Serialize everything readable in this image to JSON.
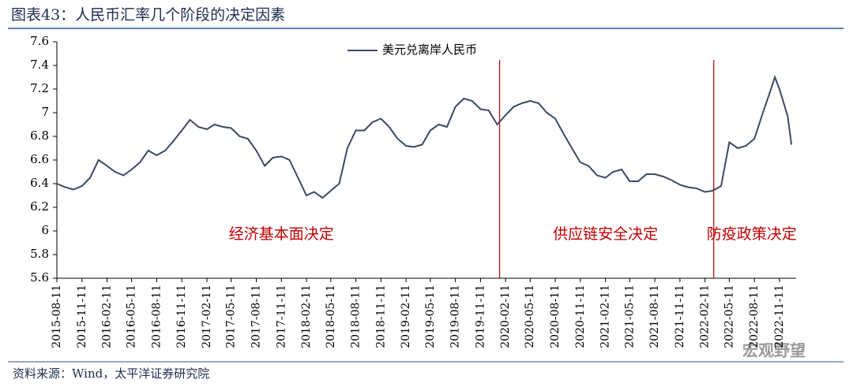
{
  "chart_data": {
    "type": "line",
    "title": "图表43：人民币汇率几个阶段的决定因素",
    "source": "资料来源：Wind，太平洋证券研究院",
    "watermark": "宏观野望",
    "x": [
      "2015-08-11",
      "2015-09-11",
      "2015-10-11",
      "2015-11-11",
      "2015-12-11",
      "2016-01-11",
      "2016-02-11",
      "2016-03-11",
      "2016-04-11",
      "2016-05-11",
      "2016-06-11",
      "2016-07-11",
      "2016-08-11",
      "2016-09-11",
      "2016-10-11",
      "2016-11-11",
      "2016-12-11",
      "2017-01-11",
      "2017-02-11",
      "2017-03-11",
      "2017-04-11",
      "2017-05-11",
      "2017-06-11",
      "2017-07-11",
      "2017-08-11",
      "2017-09-11",
      "2017-10-11",
      "2017-11-11",
      "2017-12-11",
      "2018-01-11",
      "2018-02-11",
      "2018-03-11",
      "2018-04-11",
      "2018-05-11",
      "2018-06-11",
      "2018-07-11",
      "2018-08-11",
      "2018-09-11",
      "2018-10-11",
      "2018-11-11",
      "2018-12-11",
      "2019-01-11",
      "2019-02-11",
      "2019-03-11",
      "2019-04-11",
      "2019-05-11",
      "2019-06-11",
      "2019-07-11",
      "2019-08-11",
      "2019-09-11",
      "2019-10-11",
      "2019-11-11",
      "2019-12-11",
      "2020-01-11",
      "2020-02-11",
      "2020-03-11",
      "2020-04-11",
      "2020-05-11",
      "2020-06-11",
      "2020-07-11",
      "2020-08-11",
      "2020-09-11",
      "2020-10-11",
      "2020-11-11",
      "2020-12-11",
      "2021-01-11",
      "2021-02-11",
      "2021-03-11",
      "2021-04-11",
      "2021-05-11",
      "2021-06-11",
      "2021-07-11",
      "2021-08-11",
      "2021-09-11",
      "2021-10-11",
      "2021-11-11",
      "2021-12-11",
      "2022-01-11",
      "2022-02-11",
      "2022-03-11",
      "2022-04-11",
      "2022-05-11",
      "2022-06-11",
      "2022-07-11",
      "2022-08-11",
      "2022-09-11",
      "2022-10-11",
      "2022-10-25",
      "2022-11-11",
      "2022-12-11",
      "2022-12-25"
    ],
    "series": [
      {
        "name": "美元兑离岸人民币",
        "color": "#3b4a63",
        "values": [
          6.4,
          6.37,
          6.35,
          6.38,
          6.45,
          6.6,
          6.55,
          6.5,
          6.47,
          6.52,
          6.58,
          6.68,
          6.64,
          6.68,
          6.76,
          6.85,
          6.94,
          6.88,
          6.86,
          6.9,
          6.88,
          6.87,
          6.8,
          6.78,
          6.68,
          6.55,
          6.62,
          6.63,
          6.6,
          6.45,
          6.3,
          6.33,
          6.28,
          6.34,
          6.4,
          6.7,
          6.85,
          6.85,
          6.92,
          6.95,
          6.88,
          6.78,
          6.72,
          6.71,
          6.73,
          6.85,
          6.9,
          6.88,
          7.05,
          7.12,
          7.1,
          7.03,
          7.02,
          6.9,
          6.98,
          7.05,
          7.08,
          7.1,
          7.08,
          7.0,
          6.95,
          6.82,
          6.7,
          6.58,
          6.55,
          6.47,
          6.45,
          6.5,
          6.52,
          6.42,
          6.42,
          6.48,
          6.48,
          6.46,
          6.43,
          6.39,
          6.37,
          6.36,
          6.33,
          6.34,
          6.38,
          6.75,
          6.7,
          6.72,
          6.78,
          7.0,
          7.2,
          7.3,
          7.2,
          6.97,
          6.73
        ]
      }
    ],
    "xlim": [
      "2015-08-11",
      "2023-01-11"
    ],
    "xticks": [
      "2015-08-11",
      "2015-11-11",
      "2016-02-11",
      "2016-05-11",
      "2016-08-11",
      "2016-11-11",
      "2017-02-11",
      "2017-05-11",
      "2017-08-11",
      "2017-11-11",
      "2018-02-11",
      "2018-05-11",
      "2018-08-11",
      "2018-11-11",
      "2019-02-11",
      "2019-05-11",
      "2019-08-11",
      "2019-11-11",
      "2020-02-11",
      "2020-05-11",
      "2020-08-11",
      "2020-11-11",
      "2021-02-11",
      "2021-05-11",
      "2021-08-11",
      "2021-11-11",
      "2022-02-11",
      "2022-05-11",
      "2022-08-11",
      "2022-11-11"
    ],
    "ylim": [
      5.6,
      7.6
    ],
    "yticks": [
      5.6,
      5.8,
      6,
      6.2,
      6.4,
      6.6,
      6.8,
      7,
      7.2,
      7.4,
      7.6
    ],
    "phase_boundaries": [
      "2020-01-20",
      "2022-03-15"
    ],
    "boundary_color": "#c00000",
    "annotations": [
      {
        "text": "经济基本面决定",
        "x": "2017-11-11"
      },
      {
        "text": "供应链安全决定",
        "x": "2021-02-11"
      },
      {
        "text": "防疫政策决定",
        "x": "2022-08-01"
      }
    ],
    "legend": "top"
  }
}
